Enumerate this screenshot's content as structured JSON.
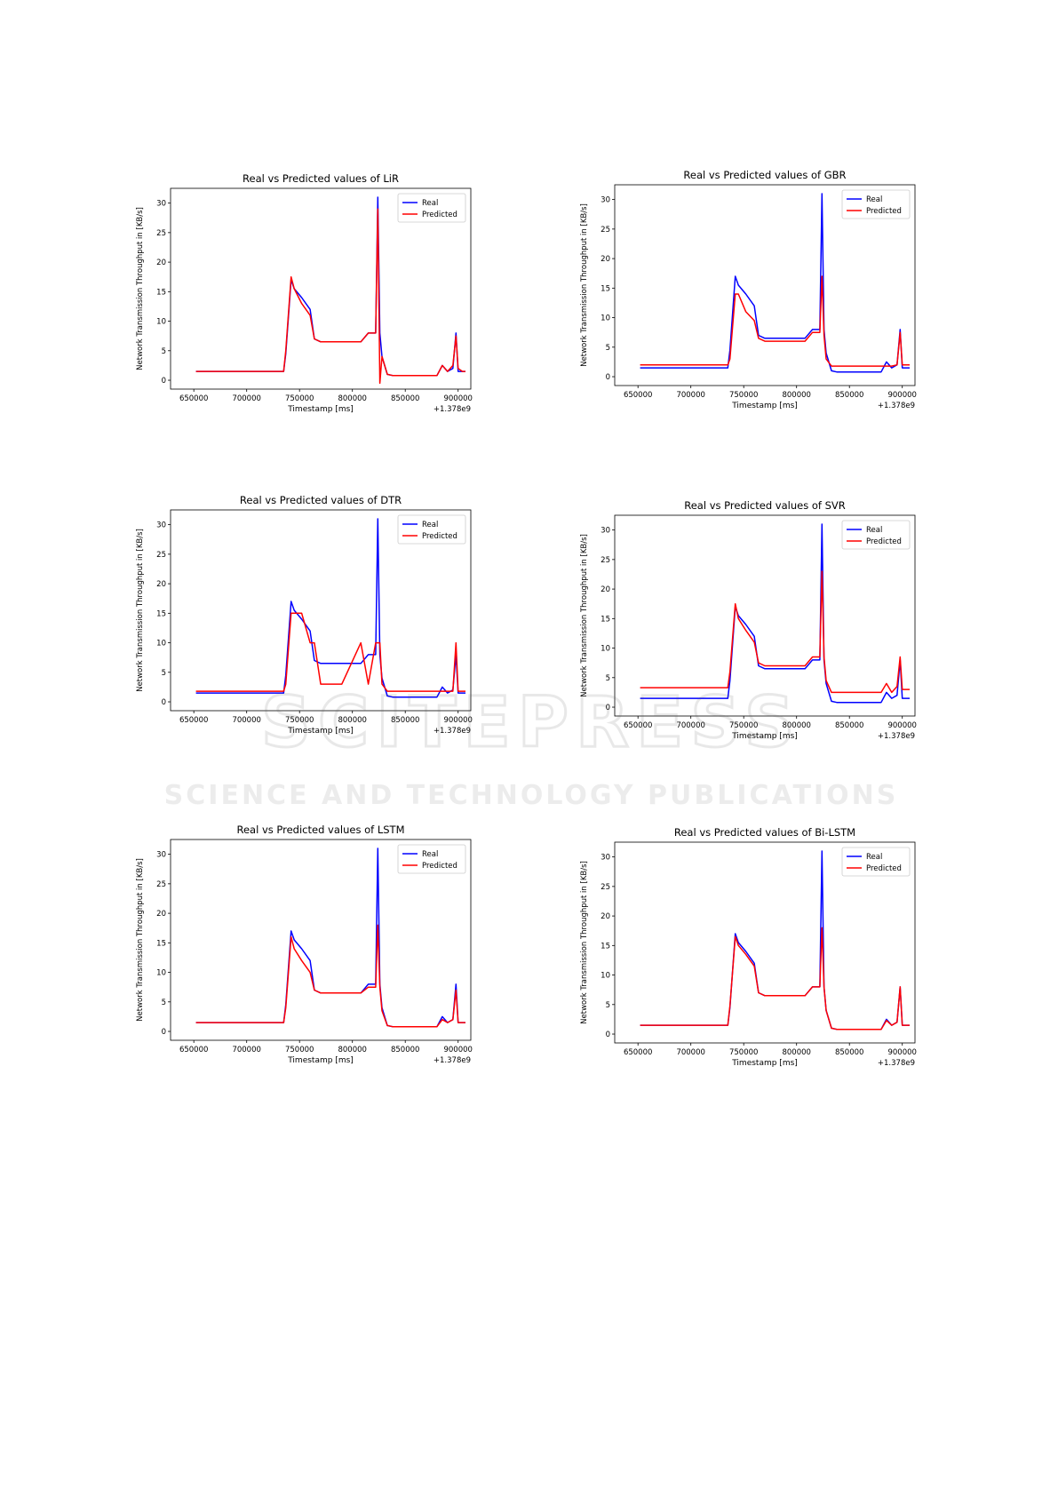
{
  "chart_data": [
    {
      "type": "line",
      "title": "Real vs Predicted values of LiR",
      "xlabel": "Timestamp [ms]",
      "ylabel": "Network Transmission Throughput in [KB/s]",
      "x_offset_label": "+1.378e9",
      "xlim": [
        628000,
        912000
      ],
      "ylim": [
        -1.5,
        32.5
      ],
      "xticks": [
        650000,
        700000,
        750000,
        800000,
        850000,
        900000
      ],
      "xtick_labels": [
        "650000",
        "700000",
        "750000",
        "800000",
        "850000",
        "900000"
      ],
      "yticks": [
        0,
        5,
        10,
        15,
        20,
        25,
        30
      ],
      "ytick_labels": [
        "0",
        "5",
        "10",
        "15",
        "20",
        "25",
        "30"
      ],
      "legend_position": "top-right",
      "series": [
        {
          "name": "Real",
          "color": "#0000ff",
          "x": [
            652000,
            735000,
            737000,
            742000,
            745000,
            752000,
            760000,
            764000,
            770000,
            790000,
            808000,
            815000,
            822000,
            824000,
            826000,
            828000,
            833000,
            838000,
            850000,
            880000,
            885000,
            890000,
            895000,
            898000,
            900000,
            904000,
            907000
          ],
          "y": [
            1.5,
            1.5,
            4.5,
            17,
            15.5,
            14,
            12,
            7,
            6.5,
            6.5,
            6.5,
            8,
            8,
            31,
            8,
            4,
            1,
            0.8,
            0.8,
            0.8,
            2.5,
            1.5,
            2,
            8,
            1.5,
            1.5,
            1.5
          ]
        },
        {
          "name": "Predicted",
          "color": "#ff0000",
          "x": [
            652000,
            735000,
            737000,
            742000,
            745000,
            752000,
            760000,
            764000,
            770000,
            790000,
            808000,
            815000,
            822000,
            824000,
            826000,
            828000,
            833000,
            838000,
            850000,
            880000,
            885000,
            890000,
            895000,
            898000,
            900000,
            904000,
            907000
          ],
          "y": [
            1.5,
            1.5,
            5,
            17.5,
            15.5,
            13,
            11,
            7,
            6.5,
            6.5,
            6.5,
            8,
            8,
            29,
            -0.5,
            4,
            1,
            0.8,
            0.8,
            0.8,
            2.5,
            1.5,
            2.5,
            7.5,
            2,
            1.5,
            1.5
          ]
        }
      ]
    },
    {
      "type": "line",
      "title": "Real vs Predicted values of GBR",
      "xlabel": "Timestamp [ms]",
      "ylabel": "Network Transmission Throughput in [KB/s]",
      "x_offset_label": "+1.378e9",
      "xlim": [
        628000,
        912000
      ],
      "ylim": [
        -1.5,
        32.5
      ],
      "xticks": [
        650000,
        700000,
        750000,
        800000,
        850000,
        900000
      ],
      "xtick_labels": [
        "650000",
        "700000",
        "750000",
        "800000",
        "850000",
        "900000"
      ],
      "yticks": [
        0,
        5,
        10,
        15,
        20,
        25,
        30
      ],
      "ytick_labels": [
        "0",
        "5",
        "10",
        "15",
        "20",
        "25",
        "30"
      ],
      "legend_position": "top-right",
      "series": [
        {
          "name": "Real",
          "color": "#0000ff",
          "x": [
            652000,
            735000,
            737000,
            742000,
            745000,
            752000,
            760000,
            764000,
            770000,
            790000,
            808000,
            815000,
            822000,
            824000,
            826000,
            828000,
            833000,
            838000,
            850000,
            880000,
            885000,
            890000,
            895000,
            898000,
            900000,
            904000,
            907000
          ],
          "y": [
            1.5,
            1.5,
            4.5,
            17,
            15.5,
            14,
            12,
            7,
            6.5,
            6.5,
            6.5,
            8,
            8,
            31,
            8,
            4,
            1,
            0.8,
            0.8,
            0.8,
            2.5,
            1.5,
            2,
            8,
            1.5,
            1.5,
            1.5
          ]
        },
        {
          "name": "Predicted",
          "color": "#ff0000",
          "x": [
            652000,
            735000,
            737000,
            742000,
            745000,
            752000,
            760000,
            764000,
            770000,
            790000,
            808000,
            815000,
            822000,
            824000,
            826000,
            828000,
            833000,
            838000,
            850000,
            880000,
            885000,
            890000,
            895000,
            898000,
            900000,
            904000,
            907000
          ],
          "y": [
            2,
            2,
            3,
            14,
            14,
            11,
            9.5,
            6.5,
            6,
            6,
            6,
            7.5,
            7.5,
            17,
            7,
            3,
            1.8,
            1.8,
            1.8,
            1.8,
            1.8,
            1.8,
            2,
            7.5,
            2,
            2,
            2
          ]
        }
      ]
    },
    {
      "type": "line",
      "title": "Real vs Predicted values of DTR",
      "xlabel": "Timestamp [ms]",
      "ylabel": "Network Transmission Throughput in [KB/s]",
      "x_offset_label": "+1.378e9",
      "xlim": [
        628000,
        912000
      ],
      "ylim": [
        -1.5,
        32.5
      ],
      "xticks": [
        650000,
        700000,
        750000,
        800000,
        850000,
        900000
      ],
      "xtick_labels": [
        "650000",
        "700000",
        "750000",
        "800000",
        "850000",
        "900000"
      ],
      "yticks": [
        0,
        5,
        10,
        15,
        20,
        25,
        30
      ],
      "ytick_labels": [
        "0",
        "5",
        "10",
        "15",
        "20",
        "25",
        "30"
      ],
      "legend_position": "top-right",
      "series": [
        {
          "name": "Real",
          "color": "#0000ff",
          "x": [
            652000,
            735000,
            737000,
            742000,
            745000,
            752000,
            760000,
            764000,
            770000,
            790000,
            808000,
            815000,
            822000,
            824000,
            826000,
            828000,
            833000,
            838000,
            850000,
            880000,
            885000,
            890000,
            895000,
            898000,
            900000,
            904000,
            907000
          ],
          "y": [
            1.5,
            1.5,
            4.5,
            17,
            15.5,
            14,
            12,
            7,
            6.5,
            6.5,
            6.5,
            8,
            8,
            31,
            8,
            4,
            1,
            0.8,
            0.8,
            0.8,
            2.5,
            1.5,
            2,
            8,
            1.5,
            1.5,
            1.5
          ]
        },
        {
          "name": "Predicted",
          "color": "#ff0000",
          "x": [
            652000,
            735000,
            737000,
            742000,
            745000,
            752000,
            760000,
            764000,
            770000,
            790000,
            808000,
            815000,
            822000,
            824000,
            826000,
            828000,
            833000,
            838000,
            850000,
            880000,
            885000,
            890000,
            895000,
            898000,
            900000,
            904000,
            907000
          ],
          "y": [
            1.8,
            1.8,
            3,
            15,
            15,
            15,
            10,
            10,
            3,
            3,
            10,
            3,
            10,
            10,
            10,
            3,
            1.8,
            1.8,
            1.8,
            1.8,
            1.8,
            1.8,
            1.8,
            10,
            1.8,
            1.8,
            1.8
          ]
        }
      ]
    },
    {
      "type": "line",
      "title": "Real vs Predicted values of SVR",
      "xlabel": "Timestamp [ms]",
      "ylabel": "Network Transmission Throughput in [KB/s]",
      "x_offset_label": "+1.378e9",
      "xlim": [
        628000,
        912000
      ],
      "ylim": [
        -1.5,
        32.5
      ],
      "xticks": [
        650000,
        700000,
        750000,
        800000,
        850000,
        900000
      ],
      "xtick_labels": [
        "650000",
        "700000",
        "750000",
        "800000",
        "850000",
        "900000"
      ],
      "yticks": [
        0,
        5,
        10,
        15,
        20,
        25,
        30
      ],
      "ytick_labels": [
        "0",
        "5",
        "10",
        "15",
        "20",
        "25",
        "30"
      ],
      "legend_position": "top-right",
      "series": [
        {
          "name": "Real",
          "color": "#0000ff",
          "x": [
            652000,
            735000,
            737000,
            742000,
            745000,
            752000,
            760000,
            764000,
            770000,
            790000,
            808000,
            815000,
            822000,
            824000,
            826000,
            828000,
            833000,
            838000,
            850000,
            880000,
            885000,
            890000,
            895000,
            898000,
            900000,
            904000,
            907000
          ],
          "y": [
            1.5,
            1.5,
            4.5,
            17,
            15.5,
            14,
            12,
            7,
            6.5,
            6.5,
            6.5,
            8,
            8,
            31,
            8,
            4,
            1,
            0.8,
            0.8,
            0.8,
            2.5,
            1.5,
            2,
            8,
            1.5,
            1.5,
            1.5
          ]
        },
        {
          "name": "Predicted",
          "color": "#ff0000",
          "x": [
            652000,
            735000,
            737000,
            742000,
            745000,
            752000,
            760000,
            764000,
            770000,
            790000,
            808000,
            815000,
            822000,
            824000,
            826000,
            828000,
            833000,
            838000,
            850000,
            880000,
            885000,
            890000,
            895000,
            898000,
            900000,
            904000,
            907000
          ],
          "y": [
            3.3,
            3.3,
            6,
            17.5,
            15,
            13,
            11,
            7.5,
            7,
            7,
            7,
            8.5,
            8.5,
            23,
            8.5,
            4.5,
            2.5,
            2.5,
            2.5,
            2.5,
            4,
            2.5,
            3.5,
            8.5,
            3,
            3,
            3
          ]
        }
      ]
    },
    {
      "type": "line",
      "title": "Real vs Predicted values of LSTM",
      "xlabel": "Timestamp [ms]",
      "ylabel": "Network Transmission Throughput in [KB/s]",
      "x_offset_label": "+1.378e9",
      "xlim": [
        628000,
        912000
      ],
      "ylim": [
        -1.5,
        32.5
      ],
      "xticks": [
        650000,
        700000,
        750000,
        800000,
        850000,
        900000
      ],
      "xtick_labels": [
        "650000",
        "700000",
        "750000",
        "800000",
        "850000",
        "900000"
      ],
      "yticks": [
        0,
        5,
        10,
        15,
        20,
        25,
        30
      ],
      "ytick_labels": [
        "0",
        "5",
        "10",
        "15",
        "20",
        "25",
        "30"
      ],
      "legend_position": "top-right",
      "series": [
        {
          "name": "Real",
          "color": "#0000ff",
          "x": [
            652000,
            735000,
            737000,
            742000,
            745000,
            752000,
            760000,
            764000,
            770000,
            790000,
            808000,
            815000,
            822000,
            824000,
            826000,
            828000,
            833000,
            838000,
            850000,
            880000,
            885000,
            890000,
            895000,
            898000,
            900000,
            904000,
            907000
          ],
          "y": [
            1.5,
            1.5,
            4.5,
            17,
            15.5,
            14,
            12,
            7,
            6.5,
            6.5,
            6.5,
            8,
            8,
            31,
            8,
            4,
            1,
            0.8,
            0.8,
            0.8,
            2.5,
            1.5,
            2,
            8,
            1.5,
            1.5,
            1.5
          ]
        },
        {
          "name": "Predicted",
          "color": "#ff0000",
          "x": [
            652000,
            735000,
            737000,
            742000,
            745000,
            752000,
            760000,
            764000,
            770000,
            790000,
            808000,
            815000,
            822000,
            824000,
            826000,
            828000,
            833000,
            838000,
            850000,
            880000,
            885000,
            890000,
            895000,
            898000,
            900000,
            904000,
            907000
          ],
          "y": [
            1.5,
            1.5,
            4,
            16,
            14,
            12,
            10,
            7,
            6.5,
            6.5,
            6.5,
            7.5,
            7.5,
            18,
            7.5,
            3.5,
            1,
            0.8,
            0.8,
            0.8,
            2,
            1.5,
            2,
            7,
            1.5,
            1.5,
            1.5
          ]
        }
      ]
    },
    {
      "type": "line",
      "title": "Real vs Predicted values of Bi-LSTM",
      "xlabel": "Timestamp [ms]",
      "ylabel": "Network Transmission Throughput in [KB/s]",
      "x_offset_label": "+1.378e9",
      "xlim": [
        628000,
        912000
      ],
      "ylim": [
        -1.5,
        32.5
      ],
      "xticks": [
        650000,
        700000,
        750000,
        800000,
        850000,
        900000
      ],
      "xtick_labels": [
        "650000",
        "700000",
        "750000",
        "800000",
        "850000",
        "900000"
      ],
      "yticks": [
        0,
        5,
        10,
        15,
        20,
        25,
        30
      ],
      "ytick_labels": [
        "0",
        "5",
        "10",
        "15",
        "20",
        "25",
        "30"
      ],
      "legend_position": "top-right",
      "series": [
        {
          "name": "Real",
          "color": "#0000ff",
          "x": [
            652000,
            735000,
            737000,
            742000,
            745000,
            752000,
            760000,
            764000,
            770000,
            790000,
            808000,
            815000,
            822000,
            824000,
            826000,
            828000,
            833000,
            838000,
            850000,
            880000,
            885000,
            890000,
            895000,
            898000,
            900000,
            904000,
            907000
          ],
          "y": [
            1.5,
            1.5,
            4.5,
            17,
            15.5,
            14,
            12,
            7,
            6.5,
            6.5,
            6.5,
            8,
            8,
            31,
            8,
            4,
            1,
            0.8,
            0.8,
            0.8,
            2.5,
            1.5,
            2,
            8,
            1.5,
            1.5,
            1.5
          ]
        },
        {
          "name": "Predicted",
          "color": "#ff0000",
          "x": [
            652000,
            735000,
            737000,
            742000,
            745000,
            752000,
            760000,
            764000,
            770000,
            790000,
            808000,
            815000,
            822000,
            824000,
            826000,
            828000,
            833000,
            838000,
            850000,
            880000,
            885000,
            890000,
            895000,
            898000,
            900000,
            904000,
            907000
          ],
          "y": [
            1.5,
            1.5,
            4.8,
            16.5,
            15,
            13.5,
            11.5,
            7,
            6.5,
            6.5,
            6.5,
            8,
            8,
            18,
            8,
            4,
            1,
            0.8,
            0.8,
            0.8,
            2.3,
            1.5,
            2,
            8,
            1.5,
            1.5,
            1.5
          ]
        }
      ]
    }
  ],
  "watermark": {
    "main": "SCITEPRESS",
    "sub": "SCIENCE AND TECHNOLOGY PUBLICATIONS"
  }
}
